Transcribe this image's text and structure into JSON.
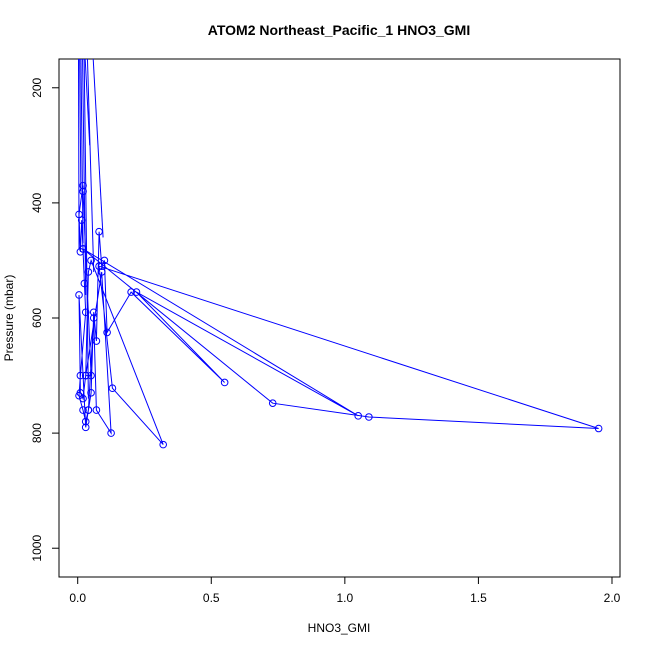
{
  "chart_data": {
    "type": "line",
    "title": "ATOM2 Northeast_Pacific_1 HNO3_GMI",
    "xlabel": "HNO3_GMI",
    "ylabel": "Pressure (mbar)",
    "xlim": [
      -0.07,
      2.03
    ],
    "ylim": [
      1050,
      150
    ],
    "y_reversed": true,
    "x_ticks": [
      0.0,
      0.5,
      1.0,
      1.5,
      2.0
    ],
    "x_tick_labels": [
      "0.0",
      "0.5",
      "1.0",
      "1.5",
      "2.0"
    ],
    "y_ticks": [
      200,
      400,
      600,
      800,
      1000
    ],
    "y_tick_labels": [
      "200",
      "400",
      "600",
      "800",
      "1000"
    ],
    "grid": false,
    "series_color": "#0000ff",
    "series": [
      {
        "x": [
          0.02,
          0.005,
          0.01,
          0.015,
          0.02,
          0.025,
          0.03,
          0.01,
          0.005,
          0.02,
          0.03,
          0.04,
          0.05,
          0.06,
          0.07,
          0.08,
          0.09,
          0.1,
          0.11,
          0.2,
          0.55,
          0.22,
          1.05,
          0.02,
          0.73,
          1.09,
          1.95,
          0.08,
          0.13,
          0.32,
          0.05,
          0.04,
          0.03,
          0.02,
          0.01,
          0.005,
          0.03,
          0.04,
          0.06,
          0.07,
          0.125,
          0.09,
          0.03,
          0.05,
          0.02
        ],
        "y": [
          370,
          420,
          485,
          430,
          480,
          540,
          590,
          700,
          735,
          760,
          780,
          760,
          730,
          590,
          640,
          450,
          510,
          500,
          625,
          555,
          712,
          555,
          770,
          480,
          748,
          772,
          792,
          510,
          722,
          820,
          500,
          520,
          700,
          740,
          730,
          560,
          790,
          760,
          600,
          760,
          800,
          520,
          700,
          700,
          380
        ]
      }
    ]
  }
}
